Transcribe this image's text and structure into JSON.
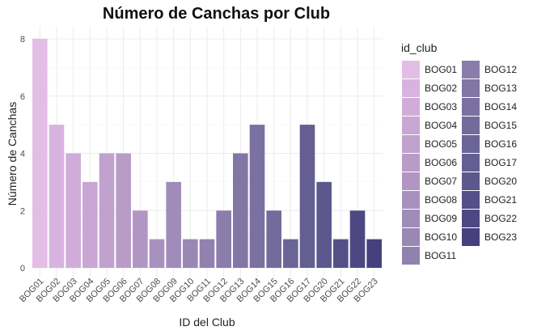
{
  "chart_data": {
    "type": "bar",
    "title": "Número de Canchas por Club",
    "xlabel": "ID del Club",
    "ylabel": "Número de Canchas",
    "ylim": [
      0,
      8
    ],
    "yticks": [
      0,
      2,
      4,
      6,
      8
    ],
    "grid": true,
    "legend_title": "id_club",
    "legend_position": "right",
    "categories": [
      "BOG01",
      "BOG02",
      "BOG03",
      "BOG04",
      "BOG05",
      "BOG06",
      "BOG07",
      "BOG08",
      "BOG09",
      "BOG10",
      "BOG11",
      "BOG12",
      "BOG13",
      "BOG14",
      "BOG15",
      "BOG16",
      "BOG17",
      "BOG20",
      "BOG21",
      "BOG22",
      "BOG23"
    ],
    "values": [
      8,
      5,
      4,
      3,
      4,
      4,
      2,
      1,
      3,
      1,
      1,
      2,
      4,
      5,
      2,
      1,
      5,
      3,
      1,
      2,
      1
    ],
    "colors": [
      "#e2bde6",
      "#d9b3e0",
      "#d1acd9",
      "#c9a6d3",
      "#c1a1ce",
      "#b99bc8",
      "#b196c3",
      "#a891be",
      "#a08cb9",
      "#9987b4",
      "#9181af",
      "#8a7cab",
      "#8276a5",
      "#7b71a0",
      "#736b9b",
      "#6b6597",
      "#645e91",
      "#5c578c",
      "#554f87",
      "#4d4882",
      "#46407d"
    ]
  }
}
